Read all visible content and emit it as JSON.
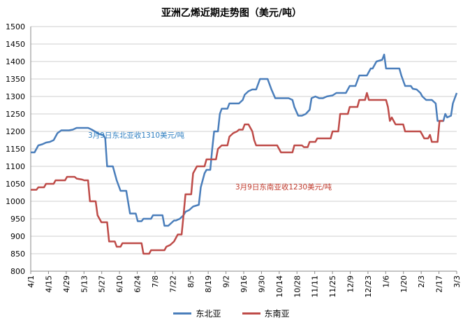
{
  "chart_data": {
    "type": "line",
    "title": "亚洲乙烯近期走势图（美元/吨）",
    "ylim": [
      800,
      1500
    ],
    "yticks": [
      800,
      850,
      900,
      950,
      1000,
      1050,
      1100,
      1150,
      1200,
      1250,
      1300,
      1350,
      1400,
      1450,
      1500
    ],
    "xticks": [
      "4/1",
      "4/15",
      "4/29",
      "5/13",
      "5/27",
      "6/10",
      "6/24",
      "7/8",
      "7/22",
      "8/5",
      "8/19",
      "9/2",
      "9/16",
      "9/30",
      "10/14",
      "10/28",
      "11/11",
      "11/25",
      "12/9",
      "12/23",
      "1/6",
      "1/20",
      "2/3",
      "2/17",
      "3/3"
    ],
    "grid": "horizontal",
    "legend_position": "bottom",
    "annotations": [
      {
        "text": "3月9日东北亚收1310美元/吨",
        "series": "东北亚"
      },
      {
        "text": "3月9日东南亚收1230美元/吨",
        "series": "东南亚"
      }
    ],
    "series": [
      {
        "name": "东北亚",
        "color": "#4a7ebb",
        "points": [
          [
            0,
            1140
          ],
          [
            2,
            1140
          ],
          [
            4,
            1160
          ],
          [
            6,
            1163
          ],
          [
            8,
            1168
          ],
          [
            10,
            1170
          ],
          [
            12,
            1175
          ],
          [
            14,
            1195
          ],
          [
            16,
            1203
          ],
          [
            20,
            1203
          ],
          [
            22,
            1205
          ],
          [
            24,
            1210
          ],
          [
            30,
            1210
          ],
          [
            32,
            1205
          ],
          [
            36,
            1192
          ],
          [
            38,
            1190
          ],
          [
            39,
            1180
          ],
          [
            40,
            1100
          ],
          [
            43,
            1100
          ],
          [
            45,
            1060
          ],
          [
            47,
            1030
          ],
          [
            50,
            1030
          ],
          [
            52,
            965
          ],
          [
            55,
            965
          ],
          [
            56,
            943
          ],
          [
            58,
            943
          ],
          [
            59,
            950
          ],
          [
            63,
            950
          ],
          [
            64,
            960
          ],
          [
            69,
            960
          ],
          [
            70,
            930
          ],
          [
            72,
            930
          ],
          [
            75,
            945
          ],
          [
            76,
            945
          ],
          [
            78,
            950
          ],
          [
            80,
            960
          ],
          [
            81,
            970
          ],
          [
            83,
            975
          ],
          [
            85,
            985
          ],
          [
            88,
            990
          ],
          [
            89,
            1040
          ],
          [
            91,
            1080
          ],
          [
            92,
            1090
          ],
          [
            94,
            1090
          ],
          [
            95,
            1150
          ],
          [
            96,
            1200
          ],
          [
            98,
            1200
          ],
          [
            99,
            1250
          ],
          [
            100,
            1265
          ],
          [
            103,
            1265
          ],
          [
            104,
            1280
          ],
          [
            109,
            1280
          ],
          [
            111,
            1290
          ],
          [
            112,
            1305
          ],
          [
            114,
            1315
          ],
          [
            116,
            1320
          ],
          [
            118,
            1320
          ],
          [
            120,
            1350
          ],
          [
            124,
            1350
          ],
          [
            126,
            1320
          ],
          [
            128,
            1295
          ],
          [
            135,
            1295
          ],
          [
            137,
            1290
          ],
          [
            138,
            1270
          ],
          [
            140,
            1245
          ],
          [
            142,
            1245
          ],
          [
            144,
            1250
          ],
          [
            146,
            1262
          ],
          [
            147,
            1295
          ],
          [
            149,
            1300
          ],
          [
            151,
            1295
          ],
          [
            153,
            1295
          ],
          [
            155,
            1300
          ],
          [
            158,
            1303
          ],
          [
            160,
            1310
          ],
          [
            165,
            1310
          ],
          [
            167,
            1330
          ],
          [
            170,
            1330
          ],
          [
            172,
            1360
          ],
          [
            176,
            1360
          ],
          [
            178,
            1380
          ],
          [
            179,
            1380
          ],
          [
            181,
            1400
          ],
          [
            184,
            1405
          ],
          [
            185,
            1420
          ],
          [
            186,
            1380
          ],
          [
            193,
            1380
          ],
          [
            194,
            1360
          ],
          [
            196,
            1330
          ],
          [
            199,
            1330
          ],
          [
            200,
            1322
          ],
          [
            202,
            1320
          ],
          [
            204,
            1310
          ],
          [
            205,
            1300
          ],
          [
            207,
            1290
          ],
          [
            210,
            1290
          ],
          [
            212,
            1280
          ],
          [
            213,
            1230
          ],
          [
            216,
            1230
          ],
          [
            217,
            1250
          ],
          [
            218,
            1240
          ],
          [
            220,
            1245
          ],
          [
            221,
            1280
          ],
          [
            223,
            1310
          ]
        ]
      },
      {
        "name": "东南亚",
        "color": "#be4b48",
        "points": [
          [
            0,
            1033
          ],
          [
            3,
            1033
          ],
          [
            4,
            1040
          ],
          [
            7,
            1040
          ],
          [
            8,
            1050
          ],
          [
            12,
            1050
          ],
          [
            13,
            1060
          ],
          [
            18,
            1060
          ],
          [
            19,
            1070
          ],
          [
            23,
            1070
          ],
          [
            24,
            1065
          ],
          [
            27,
            1062
          ],
          [
            28,
            1060
          ],
          [
            30,
            1060
          ],
          [
            31,
            1000
          ],
          [
            34,
            1000
          ],
          [
            35,
            960
          ],
          [
            37,
            940
          ],
          [
            40,
            940
          ],
          [
            41,
            885
          ],
          [
            44,
            885
          ],
          [
            45,
            870
          ],
          [
            47,
            870
          ],
          [
            48,
            880
          ],
          [
            52,
            880
          ],
          [
            54,
            880
          ],
          [
            58,
            880
          ],
          [
            59,
            850
          ],
          [
            62,
            850
          ],
          [
            63,
            860
          ],
          [
            70,
            860
          ],
          [
            71,
            870
          ],
          [
            73,
            875
          ],
          [
            75,
            885
          ],
          [
            77,
            905
          ],
          [
            79,
            905
          ],
          [
            80,
            960
          ],
          [
            81,
            1020
          ],
          [
            84,
            1020
          ],
          [
            85,
            1080
          ],
          [
            87,
            1100
          ],
          [
            91,
            1100
          ],
          [
            92,
            1120
          ],
          [
            97,
            1120
          ],
          [
            98,
            1150
          ],
          [
            100,
            1160
          ],
          [
            103,
            1160
          ],
          [
            104,
            1185
          ],
          [
            106,
            1195
          ],
          [
            108,
            1200
          ],
          [
            109,
            1205
          ],
          [
            111,
            1205
          ],
          [
            112,
            1220
          ],
          [
            114,
            1220
          ],
          [
            116,
            1200
          ],
          [
            117,
            1175
          ],
          [
            118,
            1160
          ],
          [
            129,
            1160
          ],
          [
            130,
            1150
          ],
          [
            131,
            1140
          ],
          [
            137,
            1140
          ],
          [
            138,
            1160
          ],
          [
            140,
            1160
          ],
          [
            142,
            1160
          ],
          [
            143,
            1155
          ],
          [
            145,
            1155
          ],
          [
            146,
            1170
          ],
          [
            149,
            1170
          ],
          [
            150,
            1180
          ],
          [
            157,
            1180
          ],
          [
            158,
            1200
          ],
          [
            161,
            1200
          ],
          [
            162,
            1250
          ],
          [
            166,
            1250
          ],
          [
            167,
            1270
          ],
          [
            171,
            1270
          ],
          [
            172,
            1290
          ],
          [
            175,
            1290
          ],
          [
            176,
            1310
          ],
          [
            177,
            1290
          ],
          [
            186,
            1290
          ],
          [
            187,
            1270
          ],
          [
            188,
            1230
          ],
          [
            189,
            1240
          ],
          [
            190,
            1230
          ],
          [
            191,
            1220
          ],
          [
            195,
            1220
          ],
          [
            196,
            1200
          ],
          [
            204,
            1200
          ],
          [
            205,
            1190
          ],
          [
            206,
            1180
          ],
          [
            208,
            1180
          ],
          [
            209,
            1190
          ],
          [
            210,
            1170
          ],
          [
            213,
            1170
          ],
          [
            214,
            1230
          ],
          [
            216,
            1230
          ]
        ]
      }
    ]
  }
}
